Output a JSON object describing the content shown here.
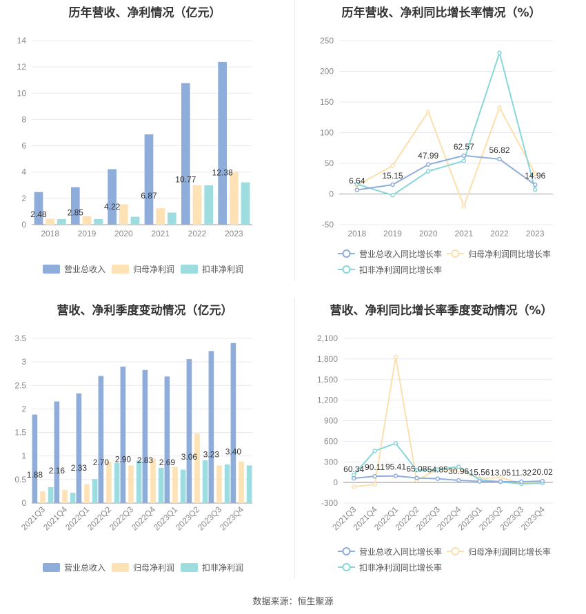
{
  "source": "数据来源：恒生聚源",
  "colors": {
    "blue": "#8eaddb",
    "orange": "#fde2b5",
    "teal": "#9ddde0",
    "blue_line": "#8eaddb",
    "orange_line": "#fddfad",
    "teal_line": "#88d6d9"
  },
  "chart_data": [
    {
      "type": "bar",
      "title": "历年营收、净利情况（亿元）",
      "categories": [
        "2018",
        "2019",
        "2020",
        "2021",
        "2022",
        "2023"
      ],
      "ylim": [
        0,
        14
      ],
      "yticks": [
        0,
        2,
        4,
        6,
        8,
        10,
        12,
        14
      ],
      "series": [
        {
          "name": "营业总收入",
          "values": [
            2.48,
            2.85,
            4.22,
            6.87,
            10.77,
            12.38
          ],
          "labels": [
            "2.48",
            "2.85",
            "4.22",
            "6.87",
            "10.77",
            "12.38"
          ]
        },
        {
          "name": "归母净利润",
          "values": [
            0.45,
            0.65,
            1.55,
            1.25,
            3.0,
            4.0
          ]
        },
        {
          "name": "扣非净利润",
          "values": [
            0.42,
            0.42,
            0.6,
            0.92,
            3.0,
            3.22
          ]
        }
      ]
    },
    {
      "type": "line",
      "title": "历年营收、净利同比增长率情况（%）",
      "categories": [
        "2018",
        "2019",
        "2020",
        "2021",
        "2022",
        "2023"
      ],
      "ylim": [
        -50,
        250
      ],
      "yticks": [
        -50,
        0,
        50,
        100,
        150,
        200,
        250
      ],
      "series": [
        {
          "name": "营业总收入同比增长率",
          "values": [
            6.64,
            15.15,
            47.99,
            62.57,
            56.82,
            14.96
          ],
          "labels": [
            "6.64",
            "15.15",
            "47.99",
            "62.57",
            "56.82",
            "14.96"
          ]
        },
        {
          "name": "归母净利润同比增长率",
          "values": [
            14,
            46,
            134,
            -20,
            141,
            33
          ]
        },
        {
          "name": "扣非净利润同比增长率",
          "values": [
            16,
            -2,
            37,
            54,
            230,
            7
          ]
        }
      ]
    },
    {
      "type": "bar",
      "title": "营收、净利季度变动情况（亿元）",
      "categories": [
        "2021Q3",
        "2021Q4",
        "2022Q1",
        "2022Q2",
        "2022Q3",
        "2022Q4",
        "2023Q1",
        "2023Q2",
        "2023Q3",
        "2023Q4"
      ],
      "ylim": [
        0,
        3.5
      ],
      "yticks": [
        0,
        0.5,
        1,
        1.5,
        2,
        2.5,
        3,
        3.5
      ],
      "ytick_labels": [
        "0",
        "0.5",
        "1",
        "1.5",
        "2",
        "2.5",
        "3",
        "3.5"
      ],
      "series": [
        {
          "name": "营业总收入",
          "values": [
            1.88,
            2.16,
            2.33,
            2.7,
            2.9,
            2.83,
            2.69,
            3.06,
            3.23,
            3.4
          ],
          "labels": [
            "1.88",
            "2.16",
            "2.33",
            "2.70",
            "2.90",
            "2.83",
            "2.69",
            "3.06",
            "3.23",
            "3.40"
          ]
        },
        {
          "name": "归母净利润",
          "values": [
            0.25,
            0.28,
            0.4,
            0.88,
            0.8,
            0.95,
            0.77,
            1.48,
            0.8,
            0.88
          ]
        },
        {
          "name": "扣非净利润",
          "values": [
            0.34,
            0.22,
            0.51,
            0.85,
            0.9,
            0.75,
            0.71,
            0.91,
            0.82,
            0.8
          ]
        }
      ]
    },
    {
      "type": "line",
      "title": "营收、净利同比增长率季度变动情况（%）",
      "categories": [
        "2021Q3",
        "2021Q4",
        "2022Q1",
        "2022Q2",
        "2022Q3",
        "2022Q4",
        "2023Q1",
        "2023Q2",
        "2023Q3",
        "2023Q4"
      ],
      "ylim": [
        -300,
        2100
      ],
      "yticks": [
        -300,
        0,
        300,
        600,
        900,
        1200,
        1500,
        1800,
        2100
      ],
      "ytick_labels": [
        "-300",
        "0",
        "300",
        "600",
        "900",
        "1,200",
        "1,500",
        "1,800",
        "2,100"
      ],
      "series": [
        {
          "name": "营业总收入同比增长率",
          "values": [
            60.34,
            90.11,
            95.41,
            65.08,
            54.85,
            30.96,
            15.56,
            13.05,
            11.32,
            20.02
          ],
          "labels": [
            "60.34",
            "90.11",
            "95.41",
            "65.08",
            "54.85",
            "30.96",
            "15.56",
            "13.05",
            "11.32",
            "20.02"
          ]
        },
        {
          "name": "归母净利润同比增长率",
          "values": [
            -60,
            -30,
            1830,
            30,
            190,
            180,
            60,
            70,
            -10,
            10
          ]
        },
        {
          "name": "扣非净利润同比增长率",
          "values": [
            110,
            460,
            570,
            180,
            190,
            230,
            40,
            10,
            -20,
            -10
          ]
        }
      ]
    }
  ]
}
